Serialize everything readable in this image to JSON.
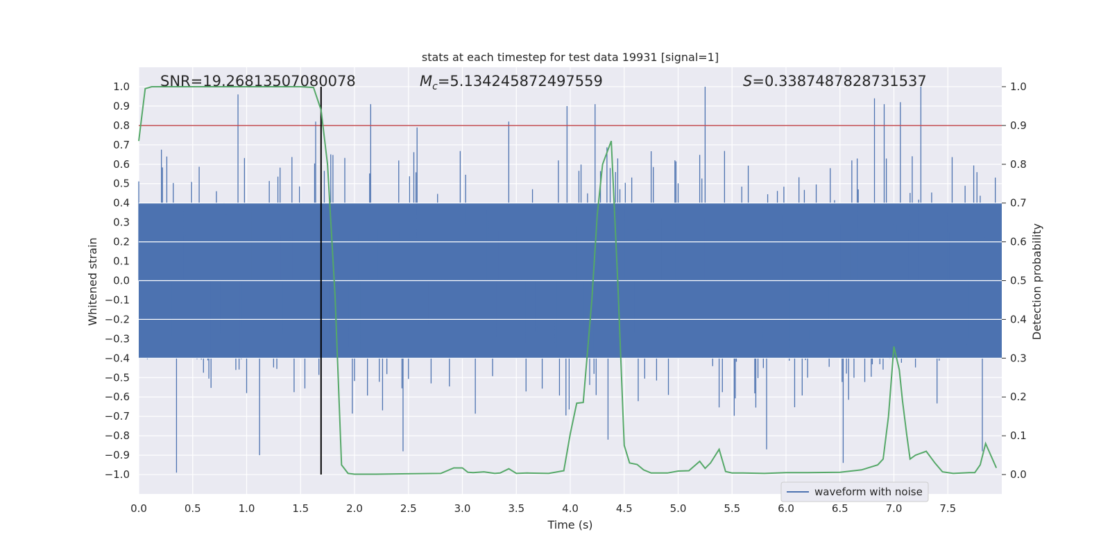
{
  "chart_data": {
    "type": "line",
    "title": "stats at each timestep for test data 19931 [signal=1]",
    "xlabel": "Time (s)",
    "ylabel_left": "Whitened strain",
    "ylabel_right": "Detection probability",
    "xlim": [
      0.0,
      8.0
    ],
    "ylim_left": [
      -1.1,
      1.1
    ],
    "ylim_right": [
      -0.05,
      1.05
    ],
    "grid": true,
    "legend": {
      "position": "bottom-right",
      "entries": [
        "waveform with noise"
      ]
    },
    "x_ticks": [
      "0.0",
      "0.5",
      "1.0",
      "1.5",
      "2.0",
      "2.5",
      "3.0",
      "3.5",
      "4.0",
      "4.5",
      "5.0",
      "5.5",
      "6.0",
      "6.5",
      "7.0",
      "7.5"
    ],
    "y_ticks_left": [
      "-1.0",
      "-0.9",
      "-0.8",
      "-0.7",
      "-0.6",
      "-0.5",
      "-0.4",
      "-0.3",
      "-0.2",
      "-0.1",
      "0.0",
      "0.1",
      "0.2",
      "0.3",
      "0.4",
      "0.5",
      "0.6",
      "0.7",
      "0.8",
      "0.9",
      "1.0"
    ],
    "y_ticks_right": [
      "0.0",
      "0.1",
      "0.2",
      "0.3",
      "0.4",
      "0.5",
      "0.6",
      "0.7",
      "0.8",
      "0.9",
      "1.0"
    ],
    "annotations": {
      "snr": "SNR=19.26813507080078",
      "mc_symbol": "M",
      "mc_sub": "c",
      "mc_value": "=5.134245872497559",
      "s_symbol": "S",
      "s_value": "=0.3387487828731537"
    },
    "threshold_line": {
      "value": 0.9,
      "axis": "right",
      "color": "#c44e52"
    },
    "event_line": {
      "x": 1.69,
      "color": "#000000"
    },
    "waveform": {
      "name": "waveform with noise",
      "color": "#4c72b0",
      "sample_rate_hz": 100,
      "band_halfwidth": 0.4,
      "note": "dense whitened noise series; peaks listed below, remaining samples generated within ±band",
      "peaks": [
        {
          "t": 0.35,
          "v": -0.99
        },
        {
          "t": 0.92,
          "v": 0.96
        },
        {
          "t": 1.12,
          "v": -0.9
        },
        {
          "t": 1.64,
          "v": 0.82
        },
        {
          "t": 2.15,
          "v": 0.91
        },
        {
          "t": 2.45,
          "v": -0.88
        },
        {
          "t": 2.58,
          "v": 0.79
        },
        {
          "t": 3.43,
          "v": 0.82
        },
        {
          "t": 3.97,
          "v": 0.9
        },
        {
          "t": 4.23,
          "v": 0.91
        },
        {
          "t": 4.35,
          "v": -0.82
        },
        {
          "t": 4.44,
          "v": 0.63
        },
        {
          "t": 5.25,
          "v": 1.0
        },
        {
          "t": 5.82,
          "v": -0.87
        },
        {
          "t": 6.53,
          "v": -0.94
        },
        {
          "t": 6.82,
          "v": 0.94
        },
        {
          "t": 6.91,
          "v": 0.91
        },
        {
          "t": 7.06,
          "v": 0.92
        },
        {
          "t": 7.25,
          "v": 1.0
        },
        {
          "t": 7.82,
          "v": -0.88
        }
      ]
    },
    "detection_probability": {
      "color": "#55a868",
      "x": [
        0.0,
        0.06,
        0.12,
        0.3,
        0.6,
        0.9,
        1.2,
        1.5,
        1.62,
        1.69,
        1.75,
        1.82,
        1.88,
        1.94,
        2.0,
        2.2,
        2.5,
        2.8,
        2.92,
        3.0,
        3.05,
        3.1,
        3.2,
        3.3,
        3.35,
        3.43,
        3.5,
        3.6,
        3.8,
        3.94,
        4.0,
        4.06,
        4.12,
        4.2,
        4.25,
        4.3,
        4.38,
        4.44,
        4.5,
        4.55,
        4.62,
        4.68,
        4.75,
        4.8,
        4.9,
        5.0,
        5.1,
        5.2,
        5.25,
        5.3,
        5.38,
        5.44,
        5.5,
        5.6,
        5.8,
        6.0,
        6.2,
        6.5,
        6.7,
        6.85,
        6.9,
        6.95,
        7.0,
        7.05,
        7.08,
        7.12,
        7.15,
        7.2,
        7.3,
        7.38,
        7.45,
        7.55,
        7.7,
        7.75,
        7.8,
        7.85,
        7.95
      ],
      "values": [
        0.86,
        0.995,
        1.0,
        1.0,
        1.0,
        1.0,
        1.0,
        1.0,
        0.998,
        0.94,
        0.8,
        0.46,
        0.025,
        0.003,
        0.001,
        0.001,
        0.002,
        0.003,
        0.017,
        0.017,
        0.006,
        0.005,
        0.007,
        0.003,
        0.004,
        0.015,
        0.003,
        0.004,
        0.003,
        0.01,
        0.105,
        0.184,
        0.186,
        0.45,
        0.67,
        0.8,
        0.86,
        0.5,
        0.075,
        0.03,
        0.026,
        0.012,
        0.004,
        0.004,
        0.004,
        0.009,
        0.01,
        0.034,
        0.016,
        0.03,
        0.065,
        0.008,
        0.004,
        0.004,
        0.003,
        0.005,
        0.005,
        0.006,
        0.012,
        0.025,
        0.04,
        0.15,
        0.33,
        0.27,
        0.19,
        0.1,
        0.04,
        0.05,
        0.06,
        0.03,
        0.007,
        0.003,
        0.005,
        0.005,
        0.025,
        0.08,
        0.017
      ]
    }
  }
}
